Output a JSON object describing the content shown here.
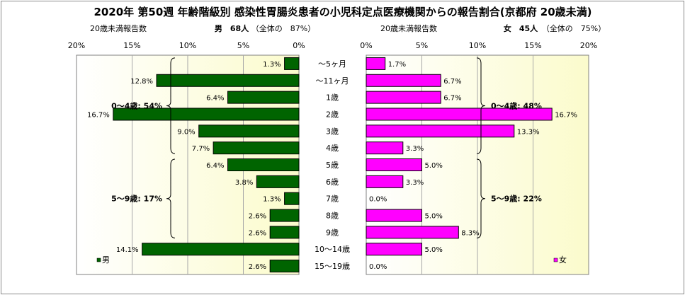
{
  "chart_data": {
    "type": "bar",
    "title": "2020年 第50週 年齢階級別 感染性胃腸炎患者の小児科定点医療機関からの報告割合(京都府 20歳未満)",
    "categories": [
      "～5ヶ月",
      "～11ヶ月",
      "1歳",
      "2歳",
      "3歳",
      "4歳",
      "5歳",
      "6歳",
      "7歳",
      "8歳",
      "9歳",
      "10～14歳",
      "15～19歳"
    ],
    "xlim": [
      0,
      20
    ],
    "ticks": [
      0,
      5,
      10,
      15,
      20
    ],
    "tick_labels": [
      "0%",
      "5%",
      "10%",
      "15%",
      "20%"
    ],
    "grid": true,
    "male": {
      "axis_caption": "20歳未満報告数",
      "header": "男　68人",
      "share": "（全体の　87%）",
      "legend": "男",
      "color": "#006400",
      "values": [
        1.3,
        12.8,
        6.4,
        16.7,
        9.0,
        7.7,
        6.4,
        3.8,
        1.3,
        2.6,
        2.6,
        14.1,
        2.6
      ],
      "labels": [
        "1.3%",
        "12.8%",
        "6.4%",
        "16.7%",
        "9.0%",
        "7.7%",
        "6.4%",
        "3.8%",
        "1.3%",
        "2.6%",
        "2.6%",
        "14.1%",
        "2.6%"
      ],
      "groups": [
        {
          "label": "0～4歳: 54%",
          "from": 0,
          "to": 5
        },
        {
          "label": "5～9歳: 17%",
          "from": 6,
          "to": 10
        }
      ]
    },
    "female": {
      "axis_caption": "20歳未満報告数",
      "header": "女　45人",
      "share": "（全体の　75%）",
      "legend": "女",
      "color": "#ff00ff",
      "values": [
        1.7,
        6.7,
        6.7,
        16.7,
        13.3,
        3.3,
        5.0,
        3.3,
        0.0,
        5.0,
        8.3,
        5.0,
        0.0
      ],
      "labels": [
        "1.7%",
        "6.7%",
        "6.7%",
        "16.7%",
        "13.3%",
        "3.3%",
        "5.0%",
        "3.3%",
        "0.0%",
        "5.0%",
        "8.3%",
        "5.0%",
        "0.0%"
      ],
      "groups": [
        {
          "label": "0～4歳: 48%",
          "from": 0,
          "to": 5
        },
        {
          "label": "5～9歳: 22%",
          "from": 6,
          "to": 10
        }
      ]
    }
  }
}
